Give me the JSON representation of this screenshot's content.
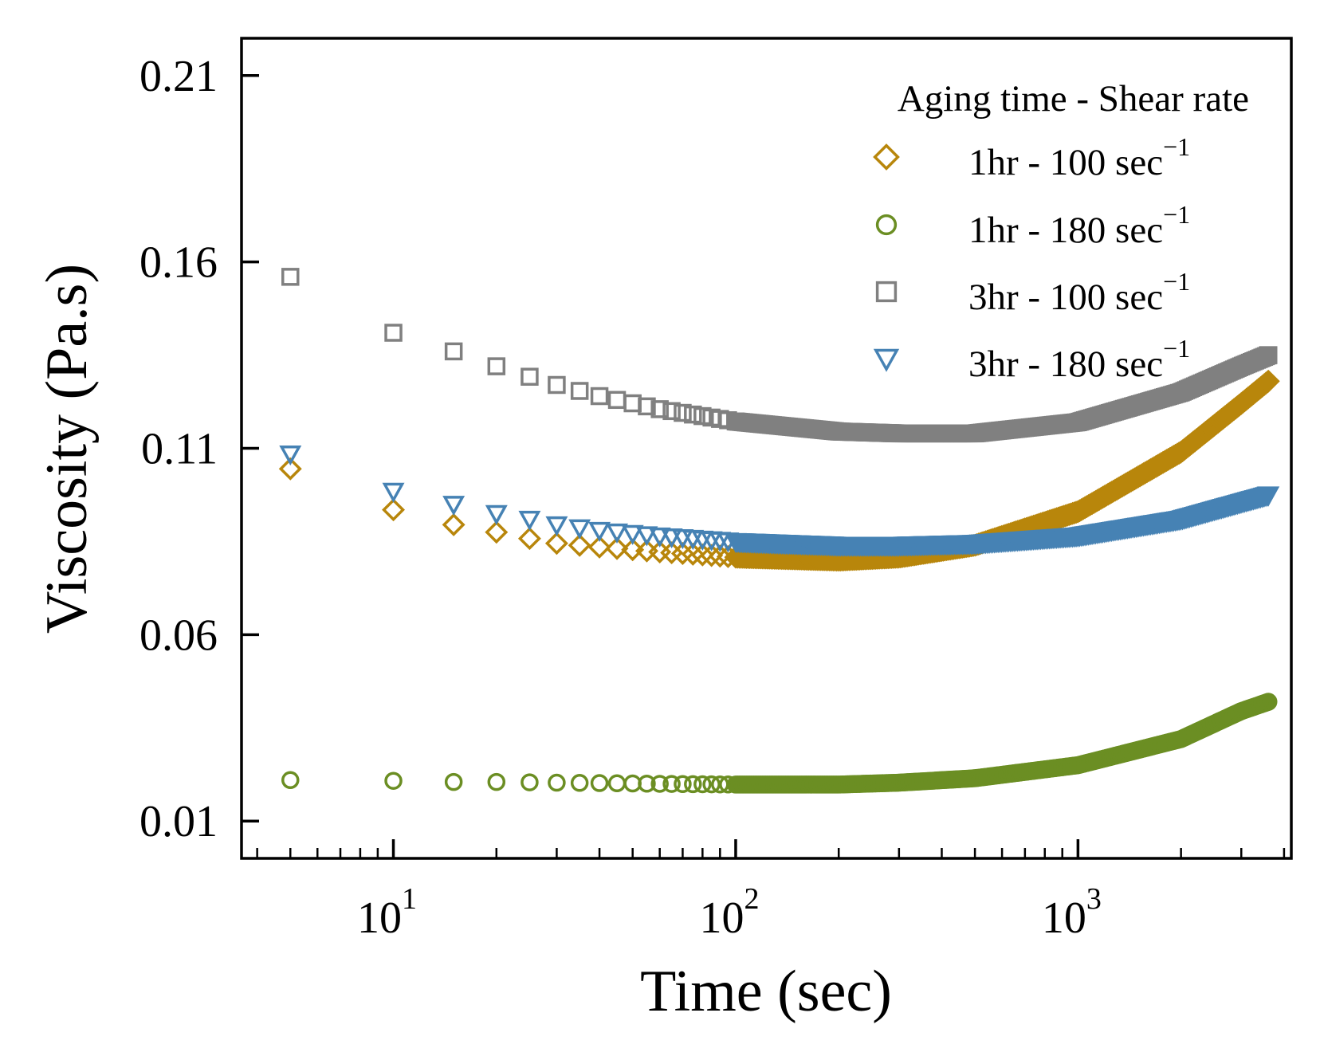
{
  "chart_data": {
    "type": "scatter",
    "xscale": "log",
    "xlabel": "Time (sec)",
    "ylabel": "Viscosity (Pa.s)",
    "xlim": [
      3.6,
      4200
    ],
    "ylim": [
      0.0,
      0.22
    ],
    "yticks": [
      0.01,
      0.06,
      0.11,
      0.16,
      0.21
    ],
    "ytick_labels": [
      "0.01",
      "0.06",
      "0.11",
      "0.16",
      "0.21"
    ],
    "xticks": [
      10,
      100,
      1000
    ],
    "xtick_labels": [
      {
        "base": "10",
        "exp": "1"
      },
      {
        "base": "10",
        "exp": "2"
      },
      {
        "base": "10",
        "exp": "3"
      }
    ],
    "grid": false,
    "legend": {
      "title": "Aging time - Shear rate",
      "placement": "top-right",
      "unit_superscript": "−1"
    },
    "series": [
      {
        "name": "1hr - 100 sec",
        "marker": "diamond",
        "color": "#b8860b",
        "x": [
          5,
          10,
          15,
          20,
          25,
          30,
          40,
          60,
          100,
          200,
          300,
          500,
          1000,
          2000,
          3000,
          3600
        ],
        "y": [
          0.1045,
          0.0935,
          0.0895,
          0.0875,
          0.0858,
          0.0845,
          0.0835,
          0.0822,
          0.0808,
          0.08,
          0.0808,
          0.084,
          0.093,
          0.109,
          0.122,
          0.128
        ]
      },
      {
        "name": "1hr - 180 sec",
        "marker": "circle",
        "color": "#6b8e23",
        "x": [
          5,
          10,
          15,
          20,
          25,
          30,
          40,
          60,
          100,
          200,
          300,
          500,
          1000,
          2000,
          3000,
          3600
        ],
        "y": [
          0.021,
          0.0208,
          0.0205,
          0.0205,
          0.0204,
          0.0203,
          0.0202,
          0.02,
          0.0198,
          0.0198,
          0.0203,
          0.0215,
          0.025,
          0.032,
          0.0395,
          0.042
        ]
      },
      {
        "name": "3hr - 100 sec",
        "marker": "square",
        "color": "#808080",
        "x": [
          5,
          10,
          15,
          20,
          25,
          30,
          40,
          60,
          100,
          200,
          300,
          500,
          1000,
          2000,
          3000,
          3600
        ],
        "y": [
          0.156,
          0.141,
          0.136,
          0.132,
          0.1292,
          0.127,
          0.124,
          0.1205,
          0.1172,
          0.1145,
          0.114,
          0.114,
          0.117,
          0.125,
          0.132,
          0.135
        ]
      },
      {
        "name": "3hr - 180 sec",
        "marker": "triangle-down",
        "color": "#4682b4",
        "x": [
          5,
          10,
          15,
          20,
          25,
          30,
          40,
          60,
          100,
          200,
          300,
          500,
          1000,
          2000,
          3000,
          3600
        ],
        "y": [
          0.1085,
          0.0985,
          0.095,
          0.0925,
          0.091,
          0.0895,
          0.088,
          0.0865,
          0.085,
          0.084,
          0.084,
          0.0845,
          0.0865,
          0.091,
          0.0955,
          0.0975
        ]
      }
    ]
  }
}
